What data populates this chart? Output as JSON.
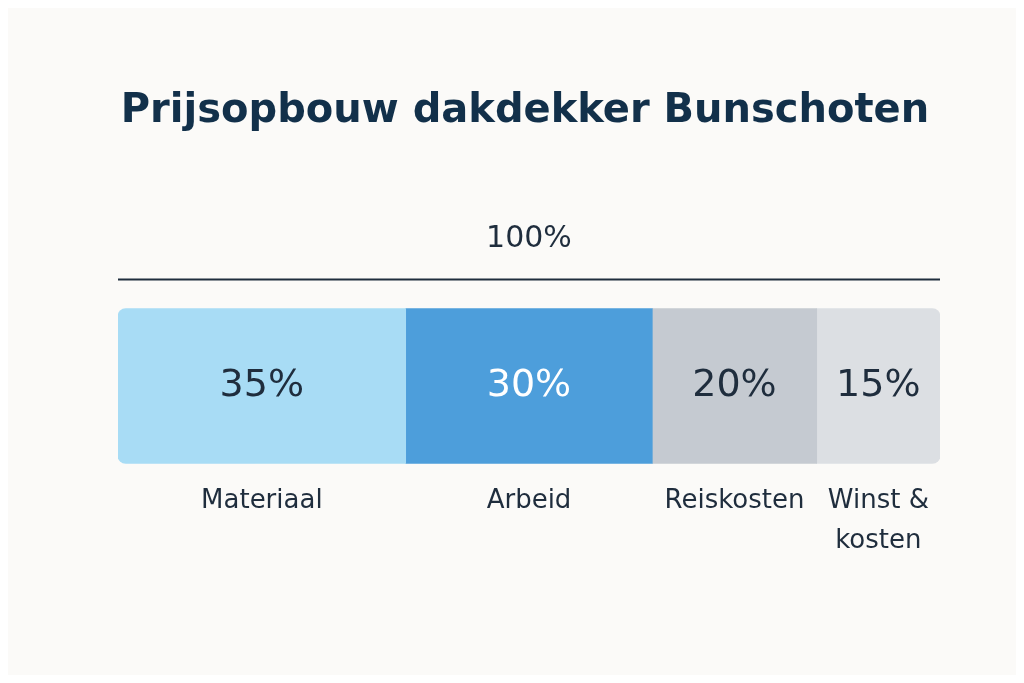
{
  "chart_data": {
    "type": "bar",
    "title": "Prijsopbouw dakdekker Bunschoten",
    "orientation": "horizontal",
    "stacked": true,
    "categories": [
      null
    ],
    "tick_labels": false,
    "grid": false,
    "legend": false,
    "totals": [
      "100%"
    ],
    "series": [
      {
        "name": "Materiaal",
        "color": "#a8dcf5",
        "values": [
          35
        ],
        "value_labels": [
          "35%"
        ]
      },
      {
        "name": "Arbeid",
        "color": "#4d9edb",
        "values": [
          30
        ],
        "value_labels": [
          "30%"
        ]
      },
      {
        "name": "Reiskosten",
        "color": "#c5cad1",
        "values": [
          20
        ],
        "value_labels": [
          "20%"
        ]
      },
      {
        "name": "Winst & kosten",
        "color": "#dcdfe3",
        "values": [
          15
        ],
        "value_labels": [
          "15%"
        ]
      }
    ]
  }
}
